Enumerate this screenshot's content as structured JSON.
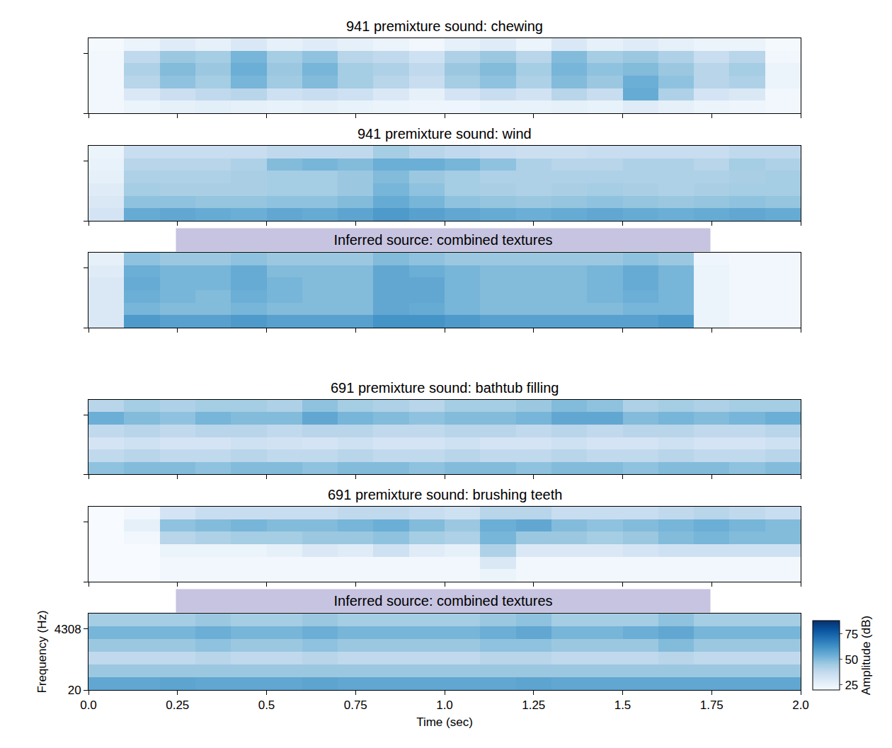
{
  "chart_data": [
    {
      "type": "heatmap",
      "title": "941 premixture sound: chewing",
      "time_bins": [
        0,
        0.1,
        0.2,
        0.3,
        0.4,
        0.5,
        0.6,
        0.7,
        0.8,
        0.9,
        1,
        1.1,
        1.2,
        1.3,
        1.4,
        1.5,
        1.6,
        1.7,
        1.8,
        1.9,
        2
      ],
      "freq_bins": [
        20,
        61,
        187,
        574,
        1760,
        5390,
        16500
      ],
      "cells": [
        [
          22,
          24,
          26,
          27,
          26,
          25,
          26,
          25,
          24,
          23,
          23,
          25,
          25,
          26,
          25,
          28,
          26,
          24,
          23,
          22
        ],
        [
          22,
          30,
          35,
          38,
          40,
          34,
          36,
          34,
          30,
          26,
          32,
          36,
          33,
          40,
          36,
          55,
          42,
          32,
          30,
          22
        ],
        [
          22,
          40,
          48,
          44,
          52,
          45,
          50,
          44,
          40,
          36,
          44,
          48,
          42,
          50,
          46,
          54,
          48,
          40,
          42,
          24
        ],
        [
          22,
          42,
          50,
          46,
          54,
          46,
          52,
          44,
          42,
          38,
          46,
          50,
          44,
          52,
          48,
          50,
          46,
          40,
          44,
          24
        ],
        [
          22,
          38,
          46,
          44,
          52,
          44,
          48,
          40,
          38,
          34,
          42,
          46,
          40,
          50,
          44,
          46,
          42,
          36,
          40,
          22
        ],
        [
          21,
          24,
          28,
          26,
          30,
          26,
          28,
          26,
          24,
          22,
          26,
          28,
          24,
          30,
          26,
          28,
          26,
          24,
          24,
          21
        ]
      ],
      "xlim": [
        0,
        2
      ],
      "xticks": [
        {
          "value": 0,
          "label": "0.0"
        },
        0.25,
        0.5,
        0.75,
        {
          "value": 1,
          "label": "1.0"
        },
        1.25,
        1.5,
        1.75,
        {
          "value": 2,
          "label": "2.0"
        }
      ],
      "ylim": [
        20,
        16500
      ],
      "yticks": [
        20,
        4308
      ],
      "log": "y",
      "tick_labels": false
    },
    {
      "type": "heatmap",
      "title": "941 premixture sound: wind",
      "time_bins": [
        0,
        0.1,
        0.2,
        0.3,
        0.4,
        0.5,
        0.6,
        0.7,
        0.8,
        0.9,
        1,
        1.1,
        1.2,
        1.3,
        1.4,
        1.5,
        1.6,
        1.7,
        1.8,
        1.9,
        2
      ],
      "freq_bins": [
        20,
        61,
        187,
        574,
        1760,
        5390,
        16500
      ],
      "cells": [
        [
          32,
          55,
          56,
          55,
          54,
          56,
          55,
          57,
          60,
          58,
          56,
          55,
          54,
          55,
          56,
          55,
          54,
          55,
          56,
          55
        ],
        [
          30,
          48,
          48,
          47,
          47,
          48,
          48,
          50,
          55,
          52,
          48,
          47,
          46,
          47,
          48,
          47,
          46,
          47,
          48,
          47
        ],
        [
          28,
          44,
          43,
          43,
          43,
          44,
          44,
          46,
          52,
          48,
          44,
          43,
          42,
          43,
          44,
          43,
          42,
          43,
          44,
          44
        ],
        [
          26,
          42,
          42,
          42,
          43,
          44,
          44,
          46,
          50,
          46,
          44,
          42,
          42,
          42,
          42,
          42,
          42,
          42,
          43,
          44
        ],
        [
          25,
          40,
          40,
          40,
          42,
          50,
          52,
          50,
          54,
          54,
          52,
          48,
          42,
          40,
          40,
          42,
          42,
          40,
          44,
          42
        ],
        [
          24,
          36,
          36,
          36,
          36,
          38,
          38,
          38,
          44,
          40,
          38,
          36,
          35,
          35,
          36,
          36,
          36,
          36,
          38,
          38
        ]
      ],
      "xlim": [
        0,
        2
      ],
      "xticks": [
        {
          "value": 0,
          "label": "0.0"
        },
        0.25,
        0.5,
        0.75,
        {
          "value": 1,
          "label": "1.0"
        },
        1.25,
        1.5,
        1.75,
        {
          "value": 2,
          "label": "2.0"
        }
      ],
      "ylim": [
        20,
        16500
      ],
      "yticks": [
        20,
        4308
      ],
      "log": "y",
      "tick_labels": false
    },
    {
      "type": "heatmap",
      "title": "Inferred source: combined textures",
      "time_bins": [
        0,
        0.1,
        0.2,
        0.3,
        0.4,
        0.5,
        0.6,
        0.7,
        0.8,
        0.9,
        1,
        1.1,
        1.2,
        1.3,
        1.4,
        1.5,
        1.6,
        1.7,
        1.8,
        1.9,
        2
      ],
      "freq_bins": [
        20,
        61,
        187,
        574,
        1760,
        5390,
        16500
      ],
      "cells": [
        [
          30,
          60,
          58,
          58,
          60,
          58,
          58,
          58,
          62,
          62,
          60,
          58,
          58,
          58,
          58,
          58,
          60,
          24,
          22,
          22
        ],
        [
          30,
          52,
          50,
          50,
          52,
          50,
          50,
          50,
          56,
          55,
          52,
          50,
          50,
          50,
          50,
          52,
          52,
          24,
          22,
          22
        ],
        [
          30,
          54,
          52,
          50,
          54,
          52,
          50,
          50,
          56,
          56,
          52,
          50,
          50,
          50,
          52,
          54,
          52,
          24,
          22,
          22
        ],
        [
          30,
          55,
          52,
          52,
          55,
          52,
          50,
          50,
          56,
          56,
          52,
          50,
          50,
          50,
          52,
          55,
          52,
          24,
          22,
          22
        ],
        [
          28,
          54,
          52,
          52,
          55,
          50,
          50,
          50,
          56,
          54,
          52,
          50,
          50,
          50,
          52,
          55,
          52,
          24,
          22,
          22
        ],
        [
          26,
          48,
          46,
          46,
          48,
          46,
          46,
          46,
          50,
          48,
          46,
          46,
          46,
          46,
          46,
          48,
          46,
          23,
          22,
          22
        ]
      ],
      "xlim": [
        0,
        2
      ],
      "xticks": [
        {
          "value": 0,
          "label": "0.0"
        },
        0.25,
        0.5,
        0.75,
        {
          "value": 1,
          "label": "1.0"
        },
        1.25,
        1.5,
        1.75,
        {
          "value": 2,
          "label": "2.0"
        }
      ],
      "ylim": [
        20,
        16500
      ],
      "yticks": [
        20,
        4308
      ],
      "log": "y",
      "tick_labels": false
    },
    {
      "type": "heatmap",
      "title": "691 premixture sound: bathtub filling",
      "time_bins": [
        0,
        0.1,
        0.2,
        0.3,
        0.4,
        0.5,
        0.6,
        0.7,
        0.8,
        0.9,
        1,
        1.1,
        1.2,
        1.3,
        1.4,
        1.5,
        1.6,
        1.7,
        1.8,
        1.9,
        2
      ],
      "freq_bins": [
        20,
        61,
        187,
        574,
        1760,
        5390,
        16500
      ],
      "cells": [
        [
          48,
          50,
          50,
          48,
          50,
          50,
          48,
          50,
          50,
          48,
          50,
          50,
          48,
          50,
          50,
          48,
          50,
          50,
          48,
          50
        ],
        [
          38,
          40,
          38,
          38,
          40,
          38,
          38,
          40,
          38,
          38,
          40,
          38,
          38,
          40,
          38,
          38,
          40,
          38,
          38,
          40
        ],
        [
          32,
          34,
          32,
          32,
          34,
          33,
          32,
          34,
          32,
          32,
          34,
          32,
          32,
          34,
          32,
          32,
          34,
          32,
          32,
          34
        ],
        [
          38,
          40,
          38,
          40,
          40,
          38,
          40,
          40,
          38,
          38,
          40,
          40,
          38,
          40,
          38,
          40,
          40,
          38,
          38,
          40
        ],
        [
          54,
          50,
          48,
          52,
          50,
          50,
          56,
          52,
          50,
          48,
          50,
          50,
          52,
          56,
          56,
          50,
          52,
          50,
          52,
          54
        ],
        [
          40,
          44,
          42,
          44,
          44,
          42,
          48,
          44,
          42,
          40,
          44,
          44,
          46,
          50,
          48,
          42,
          44,
          42,
          44,
          44
        ]
      ],
      "xlim": [
        0,
        2
      ],
      "xticks": [
        {
          "value": 0,
          "label": "0.0"
        },
        0.25,
        0.5,
        0.75,
        {
          "value": 1,
          "label": "1.0"
        },
        1.25,
        1.5,
        1.75,
        {
          "value": 2,
          "label": "2.0"
        }
      ],
      "ylim": [
        20,
        16500
      ],
      "yticks": [
        20,
        4308
      ],
      "log": "y",
      "tick_labels": false
    },
    {
      "type": "heatmap",
      "title": "691 premixture sound: brushing teeth",
      "time_bins": [
        0,
        0.1,
        0.2,
        0.3,
        0.4,
        0.5,
        0.6,
        0.7,
        0.8,
        0.9,
        1,
        1.1,
        1.2,
        1.3,
        1.4,
        1.5,
        1.6,
        1.7,
        1.8,
        1.9,
        2
      ],
      "freq_bins": [
        20,
        61,
        187,
        574,
        1760,
        5390,
        16500
      ],
      "cells": [
        [
          20,
          20,
          22,
          22,
          22,
          22,
          22,
          22,
          22,
          22,
          22,
          24,
          22,
          22,
          22,
          22,
          22,
          22,
          22,
          22
        ],
        [
          20,
          20,
          22,
          22,
          22,
          22,
          22,
          22,
          22,
          22,
          22,
          30,
          22,
          22,
          22,
          22,
          22,
          22,
          22,
          22
        ],
        [
          20,
          20,
          24,
          24,
          24,
          26,
          30,
          28,
          34,
          28,
          26,
          42,
          30,
          30,
          30,
          32,
          34,
          34,
          34,
          34
        ],
        [
          20,
          22,
          40,
          42,
          44,
          44,
          46,
          46,
          48,
          44,
          42,
          52,
          46,
          46,
          44,
          46,
          50,
          52,
          50,
          50
        ],
        [
          20,
          26,
          48,
          50,
          52,
          50,
          50,
          52,
          54,
          50,
          46,
          54,
          56,
          50,
          48,
          50,
          52,
          54,
          52,
          50
        ],
        [
          20,
          22,
          32,
          36,
          36,
          36,
          36,
          38,
          38,
          36,
          34,
          40,
          40,
          36,
          36,
          36,
          38,
          40,
          38,
          36
        ]
      ],
      "xlim": [
        0,
        2
      ],
      "xticks": [
        {
          "value": 0,
          "label": "0.0"
        },
        0.25,
        0.5,
        0.75,
        {
          "value": 1,
          "label": "1.0"
        },
        1.25,
        1.5,
        1.75,
        {
          "value": 2,
          "label": "2.0"
        }
      ],
      "ylim": [
        20,
        16500
      ],
      "yticks": [
        20,
        4308
      ],
      "log": "y",
      "tick_labels": false
    },
    {
      "type": "heatmap",
      "title": "Inferred source: combined textures",
      "time_bins": [
        0,
        0.1,
        0.2,
        0.3,
        0.4,
        0.5,
        0.6,
        0.7,
        0.8,
        0.9,
        1,
        1.1,
        1.2,
        1.3,
        1.4,
        1.5,
        1.6,
        1.7,
        1.8,
        1.9,
        2
      ],
      "freq_bins": [
        20,
        61,
        187,
        574,
        1760,
        5390,
        16500
      ],
      "cells": [
        [
          56,
          56,
          57,
          56,
          56,
          56,
          57,
          56,
          56,
          56,
          56,
          56,
          57,
          56,
          56,
          56,
          56,
          56,
          56,
          56
        ],
        [
          46,
          46,
          46,
          46,
          46,
          46,
          46,
          46,
          46,
          46,
          46,
          46,
          46,
          46,
          46,
          46,
          46,
          46,
          46,
          46
        ],
        [
          38,
          38,
          38,
          40,
          38,
          38,
          40,
          38,
          38,
          38,
          38,
          40,
          40,
          38,
          38,
          38,
          40,
          38,
          38,
          38
        ],
        [
          46,
          46,
          46,
          48,
          46,
          46,
          48,
          46,
          46,
          46,
          46,
          48,
          48,
          46,
          46,
          46,
          50,
          46,
          46,
          46
        ],
        [
          52,
          52,
          52,
          54,
          52,
          52,
          54,
          52,
          52,
          52,
          52,
          54,
          56,
          52,
          52,
          54,
          56,
          52,
          52,
          52
        ],
        [
          44,
          44,
          44,
          46,
          44,
          44,
          46,
          44,
          44,
          44,
          44,
          46,
          48,
          44,
          44,
          44,
          48,
          44,
          44,
          44
        ]
      ],
      "xlim": [
        0,
        2
      ],
      "xticks": [
        {
          "value": 0,
          "label": "0.0"
        },
        0.25,
        0.5,
        0.75,
        {
          "value": 1,
          "label": "1.0"
        },
        1.25,
        1.5,
        1.75,
        {
          "value": 2,
          "label": "2.0"
        }
      ],
      "ylim": [
        20,
        16500
      ],
      "yticks": [
        20,
        4308
      ],
      "log": "y",
      "x_label": "Time (sec)",
      "y_label": "Frequency (Hz)",
      "zlim": [
        20,
        88
      ],
      "zticks": [
        25,
        50,
        75
      ],
      "colorbar_title": "Amplitude (dB)"
    }
  ]
}
